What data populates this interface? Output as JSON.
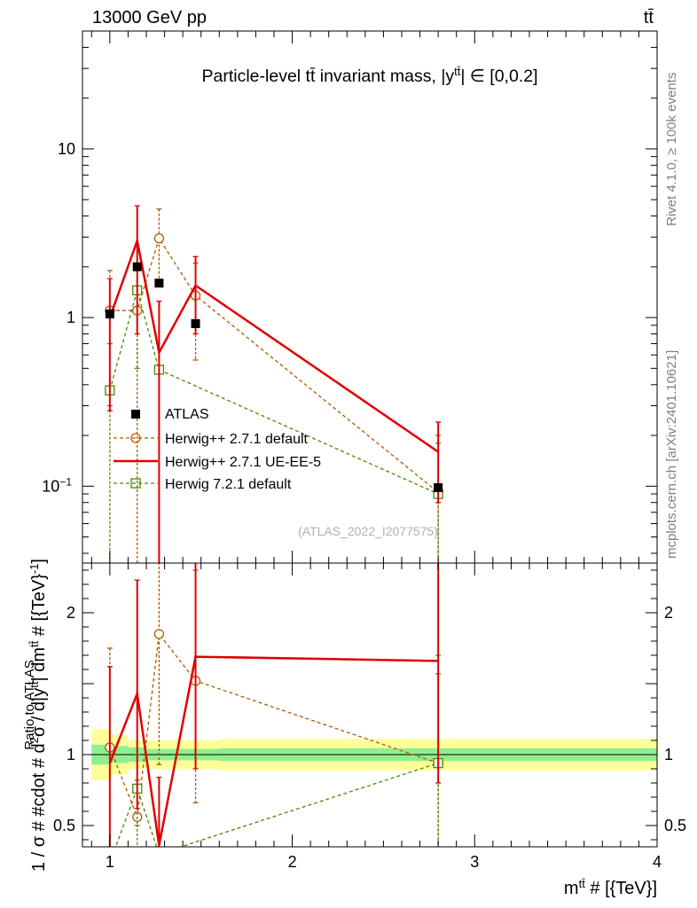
{
  "header": {
    "energy_label": "13000 GeV pp",
    "process_label": "tt̄"
  },
  "side_labels": {
    "rivet": "Rivet 4.1.0, ≥ 100k events",
    "mcplots": "mcplots.cern.ch [arXiv:2401.10621]"
  },
  "watermark": "(ATLAS_2022_I2077575)",
  "chart_data": [
    {
      "id": "main",
      "type": "line",
      "title": "Particle-level tt̄ invariant mass, |y^tt̄| ∈ [0,0.2]",
      "title_main": "Particle-level t",
      "title_bar": "t̄",
      "title_rest": " invariant mass, |y",
      "title_sup": "tt̄",
      "title_end": "| ∈ [0,0.2]",
      "ylabel": "1 / σ # #cdot # d²σ / d|y^tt̄| dm^tt̄ # [{TeV}⁻¹]",
      "ylabel_parts": {
        "a": "1 / σ # #cdot # d",
        "sup1": "2",
        "b": "σ / d|y",
        "sup2": "tt̄",
        "c": "| dm",
        "sup3": "tt̄",
        "d": " # [{TeV}",
        "sup4": "-1",
        "e": "]"
      },
      "yscale": "log",
      "ylim": [
        0.035,
        50
      ],
      "xlim": [
        0.85,
        4.0
      ],
      "y_ticks": [
        {
          "value": 0.1,
          "label": "10⁻¹",
          "base": "10",
          "exp": "−1"
        },
        {
          "value": 1,
          "label": "1"
        },
        {
          "value": 10,
          "label": "10"
        }
      ],
      "legend_position": "center-left",
      "series": [
        {
          "name": "ATLAS",
          "color": "#000000",
          "style": "marker-square-filled",
          "points": [
            {
              "x": 1.0,
              "y": 1.05
            },
            {
              "x": 1.15,
              "y": 2.0
            },
            {
              "x": 1.27,
              "y": 1.6
            },
            {
              "x": 1.47,
              "y": 0.92
            },
            {
              "x": 2.8,
              "y": 0.098
            }
          ]
        },
        {
          "name": "Herwig++ 2.7.1 default",
          "color": "#b35900",
          "style": "dashed-circle",
          "points": [
            {
              "x": 1.0,
              "y": 1.1,
              "lo": 0.3,
              "hi": 1.9
            },
            {
              "x": 1.15,
              "y": 1.1,
              "lo": 0.02,
              "hi": 2.1
            },
            {
              "x": 1.27,
              "y": 2.95,
              "lo": 1.55,
              "hi": 4.4
            },
            {
              "x": 1.47,
              "y": 1.35,
              "lo": 0.56,
              "hi": 2.1
            },
            {
              "x": 2.8,
              "y": 0.092,
              "lo": 0.02,
              "hi": 0.2
            }
          ]
        },
        {
          "name": "Herwig++ 2.7.1 UE-EE-5",
          "color": "#e00000",
          "style": "solid",
          "points": [
            {
              "x": 1.0,
              "y": 1.0,
              "lo": 0.28,
              "hi": 1.7
            },
            {
              "x": 1.15,
              "y": 2.85,
              "lo": 0.8,
              "hi": 4.6
            },
            {
              "x": 1.27,
              "y": 0.62,
              "lo": 0.01,
              "hi": 1.25
            },
            {
              "x": 1.47,
              "y": 1.55,
              "lo": 0.8,
              "hi": 2.3
            },
            {
              "x": 2.8,
              "y": 0.16,
              "lo": 0.08,
              "hi": 0.24
            }
          ]
        },
        {
          "name": "Herwig 7.2.1 default",
          "color": "#4a8a00",
          "style": "dashed-square",
          "points": [
            {
              "x": 1.0,
              "y": 0.37,
              "lo": 0.02,
              "hi": 0.7
            },
            {
              "x": 1.15,
              "y": 1.45,
              "lo": 0.5,
              "hi": 2.1
            },
            {
              "x": 1.27,
              "y": 0.49
            },
            {
              "x": 2.8,
              "y": 0.09,
              "lo": 0.01,
              "hi": 0.18
            }
          ]
        }
      ]
    },
    {
      "id": "ratio",
      "type": "line",
      "ylabel": "Ratio to ATLAS",
      "xlabel": "m^tt̄ # [{TeV}]",
      "xlabel_parts": {
        "a": "m",
        "sup": "tt̄",
        "b": " # [{TeV}]"
      },
      "ylim": [
        0.35,
        2.35
      ],
      "xlim": [
        0.85,
        4.0
      ],
      "x_ticks": [
        {
          "value": 1,
          "label": "1"
        },
        {
          "value": 2,
          "label": "2"
        },
        {
          "value": 3,
          "label": "3"
        },
        {
          "value": 4,
          "label": "4"
        }
      ],
      "y_ticks": [
        {
          "value": 0.5,
          "label": "0.5"
        },
        {
          "value": 1,
          "label": "1"
        },
        {
          "value": 2,
          "label": "2"
        }
      ],
      "bands": {
        "stat_color": "#90ee90",
        "total_color": "#ffff99",
        "bins": [
          {
            "x0": 0.9,
            "x1": 1.0,
            "inner": [
              0.93,
              1.07
            ],
            "outer": [
              0.82,
              1.18
            ]
          },
          {
            "x0": 1.0,
            "x1": 1.1,
            "inner": [
              0.94,
              1.06
            ],
            "outer": [
              0.86,
              1.14
            ]
          },
          {
            "x0": 1.1,
            "x1": 1.2,
            "inner": [
              0.95,
              1.05
            ],
            "outer": [
              0.9,
              1.1
            ]
          },
          {
            "x0": 1.2,
            "x1": 1.35,
            "inner": [
              0.96,
              1.04
            ],
            "outer": [
              0.9,
              1.1
            ]
          },
          {
            "x0": 1.35,
            "x1": 1.6,
            "inner": [
              0.96,
              1.04
            ],
            "outer": [
              0.9,
              1.1
            ]
          },
          {
            "x0": 1.6,
            "x1": 4.0,
            "inner": [
              0.955,
              1.045
            ],
            "outer": [
              0.89,
              1.11
            ]
          }
        ]
      },
      "series": [
        {
          "name": "Herwig++ 2.7.1 default",
          "color": "#b35900",
          "style": "dashed-circle",
          "points": [
            {
              "x": 1.0,
              "y": 1.05,
              "lo": 0.35,
              "hi": 1.75
            },
            {
              "x": 1.15,
              "y": 0.56,
              "lo": 0.3,
              "hi": 0.82
            },
            {
              "x": 1.27,
              "y": 1.85,
              "lo": 0.93,
              "hi": 2.7
            },
            {
              "x": 1.47,
              "y": 1.52,
              "lo": 0.66,
              "hi": 2.3
            },
            {
              "x": 2.8,
              "y": 0.94,
              "lo": 0.3,
              "hi": 1.57
            }
          ]
        },
        {
          "name": "Herwig++ 2.7.1 UE-EE-5",
          "color": "#e00000",
          "style": "solid",
          "points": [
            {
              "x": 1.0,
              "y": 0.94,
              "lo": 0.3,
              "hi": 1.62
            },
            {
              "x": 1.15,
              "y": 1.43,
              "lo": 0.62,
              "hi": 2.23
            },
            {
              "x": 1.27,
              "y": 0.36,
              "lo": 0.2,
              "hi": 0.84
            },
            {
              "x": 1.47,
              "y": 1.69,
              "lo": 0.9,
              "hi": 2.55
            },
            {
              "x": 2.8,
              "y": 1.66,
              "lo": 0.8,
              "hi": 2.5
            }
          ]
        },
        {
          "name": "Herwig 7.2.1 default",
          "color": "#4a8a00",
          "style": "dashed-square",
          "points": [
            {
              "x": 1.0,
              "y": 0.24
            },
            {
              "x": 1.15,
              "y": 0.76,
              "lo": 0.5,
              "hi": 1.0
            },
            {
              "x": 1.27,
              "y": 0.3
            },
            {
              "x": 2.8,
              "y": 0.94,
              "lo": 0.1,
              "hi": 1.7
            }
          ]
        }
      ]
    }
  ]
}
